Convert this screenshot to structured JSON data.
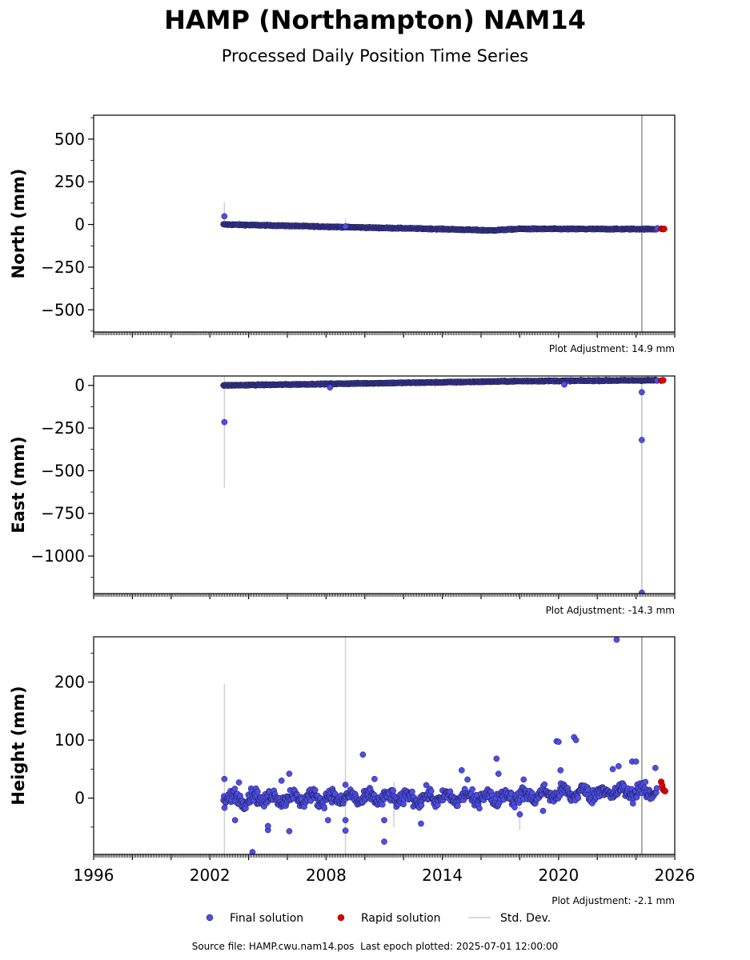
{
  "title": "HAMP (Northampton) NAM14",
  "subtitle": "Processed Daily Position Time Series",
  "footer": {
    "source_label": "Source file:",
    "source_file": "HAMP.cwu.nam14.pos",
    "epoch_label": "Last epoch plotted:",
    "last_epoch": "2025-07-01 12:00:00"
  },
  "colors": {
    "final": "#4d4dea",
    "final_edge": "#1a1a3a",
    "rapid": "#e00000",
    "std": "#cfcfcf",
    "event_line": "#999999"
  },
  "chart_data": [
    {
      "type": "scatter",
      "ylabel": "North (mm)",
      "ylim": [
        -630,
        640
      ],
      "xlim": [
        1996,
        2026
      ],
      "yticks": [
        500,
        250,
        0,
        -250,
        -500
      ],
      "ytick_labels": [
        "500",
        "250",
        "0",
        "−250",
        "−500"
      ],
      "adjustment": "Plot Adjustment: 14.9 mm",
      "event_lines": [
        2024.3
      ],
      "final_trend": [
        [
          2002.7,
          0
        ],
        [
          2006,
          -8
        ],
        [
          2010,
          -18
        ],
        [
          2014,
          -27
        ],
        [
          2016.5,
          -35
        ],
        [
          2018,
          -26
        ],
        [
          2022,
          -27
        ],
        [
          2025.1,
          -27
        ]
      ],
      "final_noise": 3,
      "final_outliers": [
        [
          2002.75,
          48
        ],
        [
          2009.0,
          -12
        ],
        [
          2025.1,
          -22
        ]
      ],
      "std_bars": [
        [
          2002.75,
          -10,
          130
        ],
        [
          2009.0,
          -35,
          35
        ]
      ],
      "rapid": [
        [
          2025.3,
          -25
        ],
        [
          2025.4,
          -27
        ],
        [
          2025.45,
          -26
        ]
      ]
    },
    {
      "type": "scatter",
      "ylabel": "East (mm)",
      "ylim": [
        -1220,
        55
      ],
      "xlim": [
        1996,
        2026
      ],
      "yticks": [
        0,
        -250,
        -500,
        -750,
        -1000
      ],
      "ytick_labels": [
        "0",
        "−250",
        "−500",
        "−750",
        "−1000"
      ],
      "adjustment": "Plot Adjustment: -14.3 mm",
      "event_lines": [
        2024.3
      ],
      "final_trend": [
        [
          2002.7,
          0
        ],
        [
          2006,
          5
        ],
        [
          2010,
          12
        ],
        [
          2014,
          18
        ],
        [
          2018,
          25
        ],
        [
          2022,
          28
        ],
        [
          2025.1,
          30
        ]
      ],
      "final_noise": 3,
      "final_outliers": [
        [
          2002.75,
          -215
        ],
        [
          2008.2,
          -12
        ],
        [
          2020.3,
          5
        ],
        [
          2024.3,
          -40
        ],
        [
          2024.3,
          -320
        ],
        [
          2024.3,
          -1215
        ],
        [
          2025.1,
          28
        ]
      ],
      "std_bars": [
        [
          2002.75,
          -600,
          60
        ],
        [
          2024.3,
          -1220,
          55
        ]
      ],
      "rapid": [
        [
          2025.3,
          28
        ],
        [
          2025.4,
          30
        ]
      ]
    },
    {
      "type": "scatter",
      "ylabel": "Height (mm)",
      "ylim": [
        -97,
        278
      ],
      "xlim": [
        1996,
        2026
      ],
      "xticks": [
        1996,
        2002,
        2008,
        2014,
        2020,
        2026
      ],
      "yticks": [
        200,
        100,
        0
      ],
      "ytick_labels": [
        "200",
        "100",
        "0"
      ],
      "adjustment": "Plot Adjustment: -2.1 mm",
      "event_lines": [
        2024.3
      ],
      "final_trend": [
        [
          2002.7,
          0
        ],
        [
          2006,
          0
        ],
        [
          2010,
          0
        ],
        [
          2014,
          0
        ],
        [
          2018,
          3
        ],
        [
          2020,
          8
        ],
        [
          2025.1,
          12
        ]
      ],
      "final_noise": 11,
      "final_outliers": [
        [
          2002.75,
          33
        ],
        [
          2003.3,
          -38
        ],
        [
          2003.5,
          27
        ],
        [
          2004.2,
          -93
        ],
        [
          2005.0,
          -55
        ],
        [
          2005.0,
          -48
        ],
        [
          2005.7,
          30
        ],
        [
          2006.1,
          42
        ],
        [
          2006.1,
          -57
        ],
        [
          2008.1,
          -38
        ],
        [
          2009.0,
          23
        ],
        [
          2009.0,
          -38
        ],
        [
          2009.0,
          -56
        ],
        [
          2009.9,
          75
        ],
        [
          2010.5,
          33
        ],
        [
          2011.0,
          -75
        ],
        [
          2011.0,
          -38
        ],
        [
          2012.9,
          -44
        ],
        [
          2015.0,
          48
        ],
        [
          2015.3,
          32
        ],
        [
          2016.8,
          68
        ],
        [
          2016.9,
          42
        ],
        [
          2018.0,
          -28
        ],
        [
          2018.2,
          32
        ],
        [
          2019.2,
          -22
        ],
        [
          2019.9,
          98
        ],
        [
          2020.0,
          97
        ],
        [
          2020.1,
          48
        ],
        [
          2020.8,
          105
        ],
        [
          2020.9,
          100
        ],
        [
          2022.8,
          50
        ],
        [
          2023.0,
          273
        ],
        [
          2023.1,
          55
        ],
        [
          2023.8,
          63
        ],
        [
          2024.0,
          63
        ],
        [
          2025.0,
          52
        ]
      ],
      "std_bars": [
        [
          2002.75,
          -100,
          197
        ],
        [
          2009.0,
          -100,
          278
        ],
        [
          2018.0,
          -55,
          -5
        ],
        [
          2011.5,
          -50,
          28
        ]
      ],
      "rapid": [
        [
          2025.3,
          28
        ],
        [
          2025.35,
          22
        ],
        [
          2025.4,
          15
        ],
        [
          2025.45,
          13
        ],
        [
          2025.5,
          12
        ]
      ]
    }
  ],
  "legend": [
    {
      "label": "Final solution",
      "kind": "final"
    },
    {
      "label": "Rapid solution",
      "kind": "rapid"
    },
    {
      "label": "Std. Dev.",
      "kind": "std"
    }
  ]
}
